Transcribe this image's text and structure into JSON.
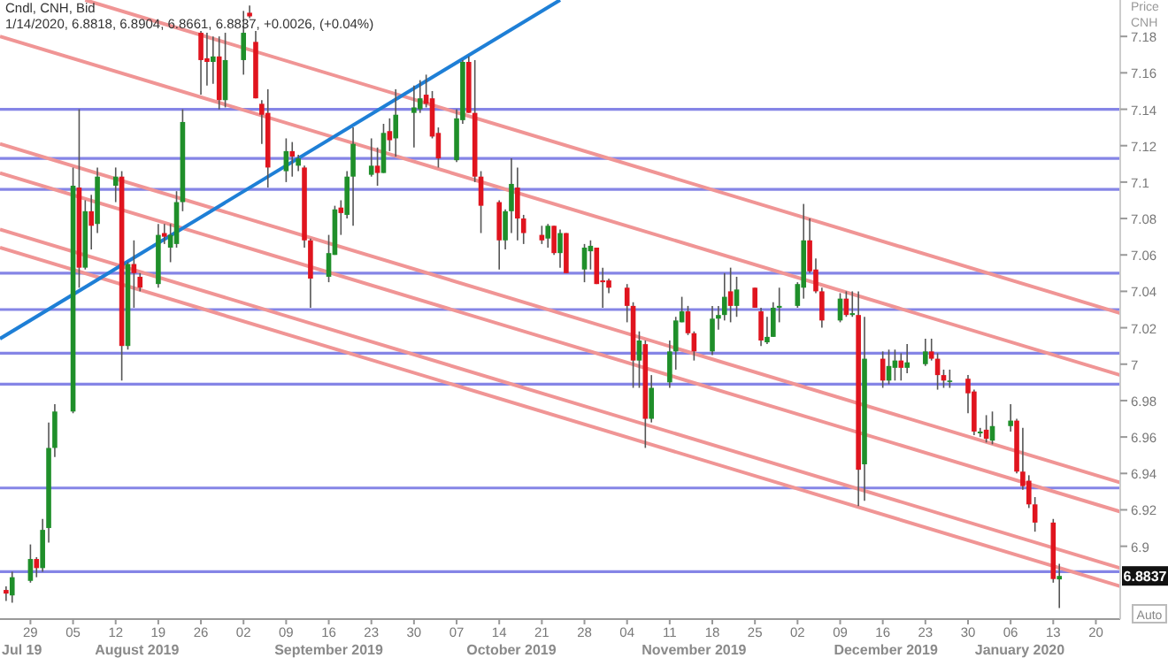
{
  "chart_data": {
    "type": "candlestick",
    "title": "Cndl, CNH, Bid",
    "subtitle": "1/14/2020, 6.8818, 6.8904, 6.8661, 6.8837, +0.0026, (+0.04%)",
    "ylabel": "Price CNH",
    "x": [
      "2019-07-25",
      "2019-07-26",
      "2019-07-29",
      "2019-07-30",
      "2019-07-31",
      "2019-08-01",
      "2019-08-02",
      "2019-08-05",
      "2019-08-06",
      "2019-08-07",
      "2019-08-08",
      "2019-08-09",
      "2019-08-12",
      "2019-08-13",
      "2019-08-14",
      "2019-08-15",
      "2019-08-16",
      "2019-08-19",
      "2019-08-20",
      "2019-08-21",
      "2019-08-22",
      "2019-08-23",
      "2019-08-26",
      "2019-08-27",
      "2019-08-28",
      "2019-08-29",
      "2019-08-30",
      "2019-09-02",
      "2019-09-03",
      "2019-09-04",
      "2019-09-05",
      "2019-09-06",
      "2019-09-09",
      "2019-09-10",
      "2019-09-11",
      "2019-09-12",
      "2019-09-13",
      "2019-09-16",
      "2019-09-17",
      "2019-09-18",
      "2019-09-19",
      "2019-09-20",
      "2019-09-23",
      "2019-09-24",
      "2019-09-25",
      "2019-09-26",
      "2019-09-27",
      "2019-09-30",
      "2019-10-01",
      "2019-10-02",
      "2019-10-03",
      "2019-10-04",
      "2019-10-07",
      "2019-10-08",
      "2019-10-09",
      "2019-10-10",
      "2019-10-11",
      "2019-10-14",
      "2019-10-15",
      "2019-10-16",
      "2019-10-17",
      "2019-10-18",
      "2019-10-21",
      "2019-10-22",
      "2019-10-23",
      "2019-10-24",
      "2019-10-25",
      "2019-10-28",
      "2019-10-29",
      "2019-10-30",
      "2019-10-31",
      "2019-11-01",
      "2019-11-04",
      "2019-11-05",
      "2019-11-06",
      "2019-11-07",
      "2019-11-08",
      "2019-11-11",
      "2019-11-12",
      "2019-11-13",
      "2019-11-14",
      "2019-11-15",
      "2019-11-18",
      "2019-11-19",
      "2019-11-20",
      "2019-11-21",
      "2019-11-22",
      "2019-11-25",
      "2019-11-26",
      "2019-11-27",
      "2019-11-28",
      "2019-11-29",
      "2019-12-02",
      "2019-12-03",
      "2019-12-04",
      "2019-12-05",
      "2019-12-06",
      "2019-12-09",
      "2019-12-10",
      "2019-12-11",
      "2019-12-12",
      "2019-12-13",
      "2019-12-16",
      "2019-12-17",
      "2019-12-18",
      "2019-12-19",
      "2019-12-20",
      "2019-12-23",
      "2019-12-24",
      "2019-12-25",
      "2019-12-26",
      "2019-12-27",
      "2019-12-30",
      "2019-12-31",
      "2020-01-01",
      "2020-01-02",
      "2020-01-03",
      "2020-01-06",
      "2020-01-07",
      "2020-01-08",
      "2020-01-09",
      "2020-01-10",
      "2020-01-13",
      "2020-01-14"
    ],
    "ohlc": [
      [
        6.876,
        6.878,
        6.87,
        6.874
      ],
      [
        6.873,
        6.886,
        6.869,
        6.883
      ],
      [
        6.881,
        6.901,
        6.88,
        6.893
      ],
      [
        6.893,
        6.894,
        6.883,
        6.888
      ],
      [
        6.888,
        6.915,
        6.886,
        6.909
      ],
      [
        6.91,
        6.968,
        6.902,
        6.954
      ],
      [
        6.954,
        6.978,
        6.949,
        6.974
      ],
      [
        6.974,
        7.108,
        6.973,
        7.098
      ],
      [
        7.097,
        7.14,
        7.042,
        7.053
      ],
      [
        7.053,
        7.09,
        7.052,
        7.084
      ],
      [
        7.084,
        7.093,
        7.063,
        7.076
      ],
      [
        7.077,
        7.108,
        7.072,
        7.103
      ],
      [
        7.098,
        7.108,
        7.089,
        7.103
      ],
      [
        7.103,
        7.106,
        6.991,
        7.01
      ],
      [
        7.01,
        7.056,
        7.008,
        7.055
      ],
      [
        7.055,
        7.068,
        7.031,
        7.05
      ],
      [
        7.048,
        7.05,
        7.04,
        7.042
      ],
      [
        7.044,
        7.077,
        7.042,
        7.071
      ],
      [
        7.072,
        7.077,
        7.066,
        7.07
      ],
      [
        7.064,
        7.077,
        7.056,
        7.071
      ],
      [
        7.066,
        7.095,
        7.064,
        7.089
      ],
      [
        7.089,
        7.14,
        7.084,
        7.133
      ],
      [
        7.182,
        7.183,
        7.148,
        7.167
      ],
      [
        7.168,
        7.182,
        7.153,
        7.166
      ],
      [
        7.166,
        7.18,
        7.154,
        7.169
      ],
      [
        7.169,
        7.18,
        7.14,
        7.145
      ],
      [
        7.145,
        7.182,
        7.141,
        7.167
      ],
      [
        7.167,
        7.194,
        7.159,
        7.182
      ],
      [
        7.193,
        7.197,
        7.19,
        7.191
      ],
      [
        7.177,
        7.183,
        7.146,
        7.146
      ],
      [
        7.143,
        7.145,
        7.121,
        7.137
      ],
      [
        7.138,
        7.151,
        7.097,
        7.108
      ],
      [
        7.106,
        7.124,
        7.1,
        7.117
      ],
      [
        7.117,
        7.122,
        7.103,
        7.114
      ],
      [
        7.109,
        7.115,
        7.106,
        7.113
      ],
      [
        7.108,
        7.109,
        7.064,
        7.068
      ],
      [
        7.068,
        7.069,
        7.031,
        7.047
      ],
      [
        7.048,
        7.071,
        7.045,
        7.061
      ],
      [
        7.06,
        7.087,
        7.06,
        7.085
      ],
      [
        7.086,
        7.09,
        7.071,
        7.083
      ],
      [
        7.082,
        7.106,
        7.08,
        7.103
      ],
      [
        7.103,
        7.13,
        7.076,
        7.121
      ],
      [
        7.104,
        7.124,
        7.103,
        7.109
      ],
      [
        7.109,
        7.119,
        7.098,
        7.105
      ],
      [
        7.105,
        7.132,
        7.105,
        7.127
      ],
      [
        7.128,
        7.135,
        7.117,
        7.123
      ],
      [
        7.124,
        7.151,
        7.114,
        7.137
      ],
      [
        7.138,
        7.153,
        7.119,
        7.141
      ],
      [
        7.14,
        7.156,
        7.138,
        7.146
      ],
      [
        7.148,
        7.159,
        7.141,
        7.143
      ],
      [
        7.146,
        7.15,
        7.124,
        7.125
      ],
      [
        7.127,
        7.13,
        7.108,
        7.113
      ],
      [
        7.112,
        7.14,
        7.111,
        7.135
      ],
      [
        7.134,
        7.167,
        7.132,
        7.166
      ],
      [
        7.166,
        7.169,
        7.138,
        7.138
      ],
      [
        7.138,
        7.167,
        7.1,
        7.103
      ],
      [
        7.103,
        7.106,
        7.072,
        7.087
      ],
      [
        7.089,
        7.09,
        7.052,
        7.068
      ],
      [
        7.068,
        7.085,
        7.063,
        7.084
      ],
      [
        7.084,
        7.113,
        7.072,
        7.099
      ],
      [
        7.097,
        7.108,
        7.068,
        7.08
      ],
      [
        7.08,
        7.082,
        7.066,
        7.072
      ],
      [
        7.071,
        7.076,
        7.066,
        7.068
      ],
      [
        7.069,
        7.077,
        7.064,
        7.076
      ],
      [
        7.076,
        7.076,
        7.06,
        7.061
      ],
      [
        7.061,
        7.074,
        7.053,
        7.072
      ],
      [
        7.072,
        7.072,
        7.05,
        7.05
      ],
      [
        7.052,
        7.066,
        7.045,
        7.064
      ],
      [
        7.062,
        7.068,
        7.052,
        7.065
      ],
      [
        7.064,
        7.064,
        7.044,
        7.044
      ],
      [
        7.046,
        7.053,
        7.031,
        7.045
      ],
      [
        7.046,
        7.047,
        7.039,
        7.042
      ],
      [
        7.042,
        7.044,
        7.023,
        7.032
      ],
      [
        7.032,
        7.034,
        6.987,
        7.002
      ],
      [
        7.002,
        7.018,
        6.987,
        7.013
      ],
      [
        7.011,
        7.013,
        6.954,
        6.97
      ],
      [
        6.97,
        6.994,
        6.968,
        6.987
      ],
      [
        6.99,
        7.013,
        6.987,
        7.007
      ],
      [
        7.007,
        7.026,
        6.997,
        7.024
      ],
      [
        7.023,
        7.037,
        7.023,
        7.029
      ],
      [
        7.029,
        7.032,
        7.016,
        7.017
      ],
      [
        7.017,
        7.018,
        7.002,
        7.007
      ],
      [
        7.007,
        7.032,
        7.005,
        7.025
      ],
      [
        7.025,
        7.032,
        7.019,
        7.027
      ],
      [
        7.027,
        7.05,
        7.024,
        7.037
      ],
      [
        7.04,
        7.053,
        7.023,
        7.032
      ],
      [
        7.032,
        7.048,
        7.026,
        7.041
      ],
      [
        7.042,
        7.042,
        7.031,
        7.031
      ],
      [
        7.029,
        7.031,
        7.01,
        7.013
      ],
      [
        7.012,
        7.026,
        7.011,
        7.015
      ],
      [
        7.015,
        7.034,
        7.015,
        7.031
      ],
      [
        7.031,
        7.042,
        7.023,
        7.032
      ],
      [
        7.032,
        7.045,
        7.031,
        7.044
      ],
      [
        7.042,
        7.088,
        7.036,
        7.068
      ],
      [
        7.068,
        7.08,
        7.05,
        7.051
      ],
      [
        7.052,
        7.058,
        7.039,
        7.04
      ],
      [
        7.04,
        7.042,
        7.02,
        7.024
      ],
      [
        7.024,
        7.039,
        7.023,
        7.036
      ],
      [
        7.036,
        7.04,
        7.026,
        7.027
      ],
      [
        7.027,
        7.04,
        7.026,
        7.028
      ],
      [
        7.027,
        7.04,
        6.922,
        6.942
      ],
      [
        6.945,
        7.026,
        6.925,
        7.003
      ],
      [
        7.003,
        7.007,
        6.987,
        6.991
      ],
      [
        6.991,
        7.008,
        6.989,
        6.999
      ],
      [
        6.998,
        7.008,
        6.991,
        7.002
      ],
      [
        7.002,
        7.006,
        6.991,
        6.998
      ],
      [
        6.998,
        7.011,
        6.995,
        7.001
      ],
      [
        7.0,
        7.014,
        6.999,
        7.007
      ],
      [
        7.007,
        7.014,
        7.002,
        7.003
      ],
      [
        7.003,
        7.006,
        6.986,
        6.994
      ],
      [
        6.994,
        6.997,
        6.987,
        6.991
      ],
      [
        6.991,
        6.997,
        6.987,
        6.991
      ],
      [
        6.992,
        6.994,
        6.973,
        6.984
      ],
      [
        6.985,
        6.986,
        6.961,
        6.963
      ],
      [
        6.962,
        6.965,
        6.96,
        6.963
      ],
      [
        6.964,
        6.972,
        6.957,
        6.959
      ],
      [
        6.958,
        6.974,
        6.956,
        6.966
      ],
      [
        6.966,
        6.978,
        6.963,
        6.969
      ],
      [
        6.969,
        6.97,
        6.94,
        6.941
      ],
      [
        6.941,
        6.965,
        6.931,
        6.933
      ],
      [
        6.936,
        6.939,
        6.921,
        6.923
      ],
      [
        6.923,
        6.927,
        6.908,
        6.913
      ],
      [
        6.913,
        6.915,
        6.88,
        6.882
      ],
      [
        6.8818,
        6.8904,
        6.8661,
        6.8837
      ]
    ],
    "series": [
      {
        "type": "line",
        "color": "#f09595",
        "x": [
          "2019-08-07",
          "2020-01-24"
        ],
        "values": [
          7.2,
          7.028
        ]
      },
      {
        "type": "line",
        "color": "#f09595",
        "x": [
          "2019-07-24",
          "2020-01-24"
        ],
        "values": [
          7.18,
          6.994
        ]
      },
      {
        "type": "line",
        "color": "#f09595",
        "x": [
          "2019-07-24",
          "2020-01-24"
        ],
        "values": [
          7.121,
          6.935
        ]
      },
      {
        "type": "line",
        "color": "#f09595",
        "x": [
          "2019-07-24",
          "2020-01-24"
        ],
        "values": [
          7.105,
          6.919
        ]
      },
      {
        "type": "line",
        "color": "#f09595",
        "x": [
          "2019-07-24",
          "2020-01-24"
        ],
        "values": [
          7.074,
          6.888
        ]
      },
      {
        "type": "line",
        "color": "#f09595",
        "x": [
          "2019-07-24",
          "2020-01-24"
        ],
        "values": [
          7.064,
          6.878
        ]
      },
      {
        "type": "line",
        "color": "#1e7fd6",
        "x": [
          "2019-07-24",
          "2019-10-24"
        ],
        "values": [
          7.014,
          7.2
        ]
      }
    ],
    "ref_lines": [
      {
        "axis": "y",
        "value": 7.14,
        "color": "#8585e6"
      },
      {
        "axis": "y",
        "value": 7.113,
        "color": "#8585e6"
      },
      {
        "axis": "y",
        "value": 7.096,
        "color": "#8585e6"
      },
      {
        "axis": "y",
        "value": 7.05,
        "color": "#8585e6"
      },
      {
        "axis": "y",
        "value": 7.03,
        "color": "#8585e6"
      },
      {
        "axis": "y",
        "value": 7.006,
        "color": "#8585e6"
      },
      {
        "axis": "y",
        "value": 6.989,
        "color": "#8585e6"
      },
      {
        "axis": "y",
        "value": 6.932,
        "color": "#8585e6"
      },
      {
        "axis": "y",
        "value": 6.886,
        "color": "#8585e6"
      }
    ],
    "annotations": [
      "6.8837",
      "Auto",
      "Jul 19",
      "August 2019",
      "September 2019",
      "October 2019",
      "November 2019",
      "December 2019",
      "January 2020"
    ],
    "xlim": [
      "2019-07-24",
      "2020-01-24"
    ],
    "xticks": [
      {
        "value": "2019-07-29",
        "label": "29"
      },
      {
        "value": "2019-08-05",
        "label": "05"
      },
      {
        "value": "2019-08-12",
        "label": "12"
      },
      {
        "value": "2019-08-19",
        "label": "19"
      },
      {
        "value": "2019-08-26",
        "label": "26"
      },
      {
        "value": "2019-09-02",
        "label": "02"
      },
      {
        "value": "2019-09-09",
        "label": "09"
      },
      {
        "value": "2019-09-16",
        "label": "16"
      },
      {
        "value": "2019-09-23",
        "label": "23"
      },
      {
        "value": "2019-09-30",
        "label": "30"
      },
      {
        "value": "2019-10-07",
        "label": "07"
      },
      {
        "value": "2019-10-14",
        "label": "14"
      },
      {
        "value": "2019-10-21",
        "label": "21"
      },
      {
        "value": "2019-10-28",
        "label": "28"
      },
      {
        "value": "2019-11-04",
        "label": "04"
      },
      {
        "value": "2019-11-11",
        "label": "11"
      },
      {
        "value": "2019-11-18",
        "label": "18"
      },
      {
        "value": "2019-11-25",
        "label": "25"
      },
      {
        "value": "2019-12-02",
        "label": "02"
      },
      {
        "value": "2019-12-09",
        "label": "09"
      },
      {
        "value": "2019-12-16",
        "label": "16"
      },
      {
        "value": "2019-12-23",
        "label": "23"
      },
      {
        "value": "2019-12-30",
        "label": "30"
      },
      {
        "value": "2020-01-06",
        "label": "06"
      },
      {
        "value": "2020-01-13",
        "label": "13"
      },
      {
        "value": "2020-01-20",
        "label": "20"
      }
    ],
    "ylim": [
      6.86,
      7.2
    ],
    "yticks": [
      6.9,
      6.92,
      6.94,
      6.96,
      6.98,
      7,
      7.02,
      7.04,
      7.06,
      7.08,
      7.1,
      7.12,
      7.14,
      7.16,
      7.18
    ]
  }
}
